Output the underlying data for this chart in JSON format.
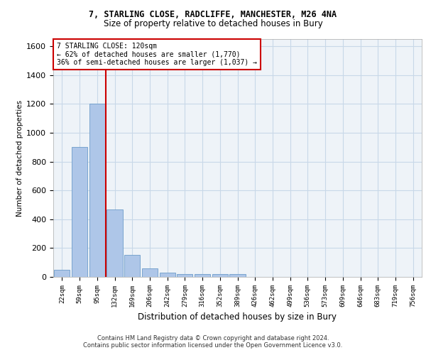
{
  "title1": "7, STARLING CLOSE, RADCLIFFE, MANCHESTER, M26 4NA",
  "title2": "Size of property relative to detached houses in Bury",
  "xlabel": "Distribution of detached houses by size in Bury",
  "ylabel": "Number of detached properties",
  "categories": [
    "22sqm",
    "59sqm",
    "95sqm",
    "132sqm",
    "169sqm",
    "206sqm",
    "242sqm",
    "279sqm",
    "316sqm",
    "352sqm",
    "389sqm",
    "426sqm",
    "462sqm",
    "499sqm",
    "536sqm",
    "573sqm",
    "609sqm",
    "646sqm",
    "683sqm",
    "719sqm",
    "756sqm"
  ],
  "values": [
    50,
    900,
    1200,
    470,
    155,
    60,
    30,
    20,
    20,
    20,
    20,
    0,
    0,
    0,
    0,
    0,
    0,
    0,
    0,
    0,
    0
  ],
  "bar_color": "#aec6e8",
  "bar_edge_color": "#5a8fc2",
  "grid_color": "#c8d8e8",
  "background_color": "#eef3f8",
  "property_line_x": 2.5,
  "property_label": "7 STARLING CLOSE: 120sqm",
  "annotation_line1": "← 62% of detached houses are smaller (1,770)",
  "annotation_line2": "36% of semi-detached houses are larger (1,037) →",
  "annotation_box_color": "#ffffff",
  "annotation_box_edge": "#cc0000",
  "property_line_color": "#cc0000",
  "ylim": [
    0,
    1650
  ],
  "yticks": [
    0,
    200,
    400,
    600,
    800,
    1000,
    1200,
    1400,
    1600
  ],
  "footer1": "Contains HM Land Registry data © Crown copyright and database right 2024.",
  "footer2": "Contains public sector information licensed under the Open Government Licence v3.0."
}
